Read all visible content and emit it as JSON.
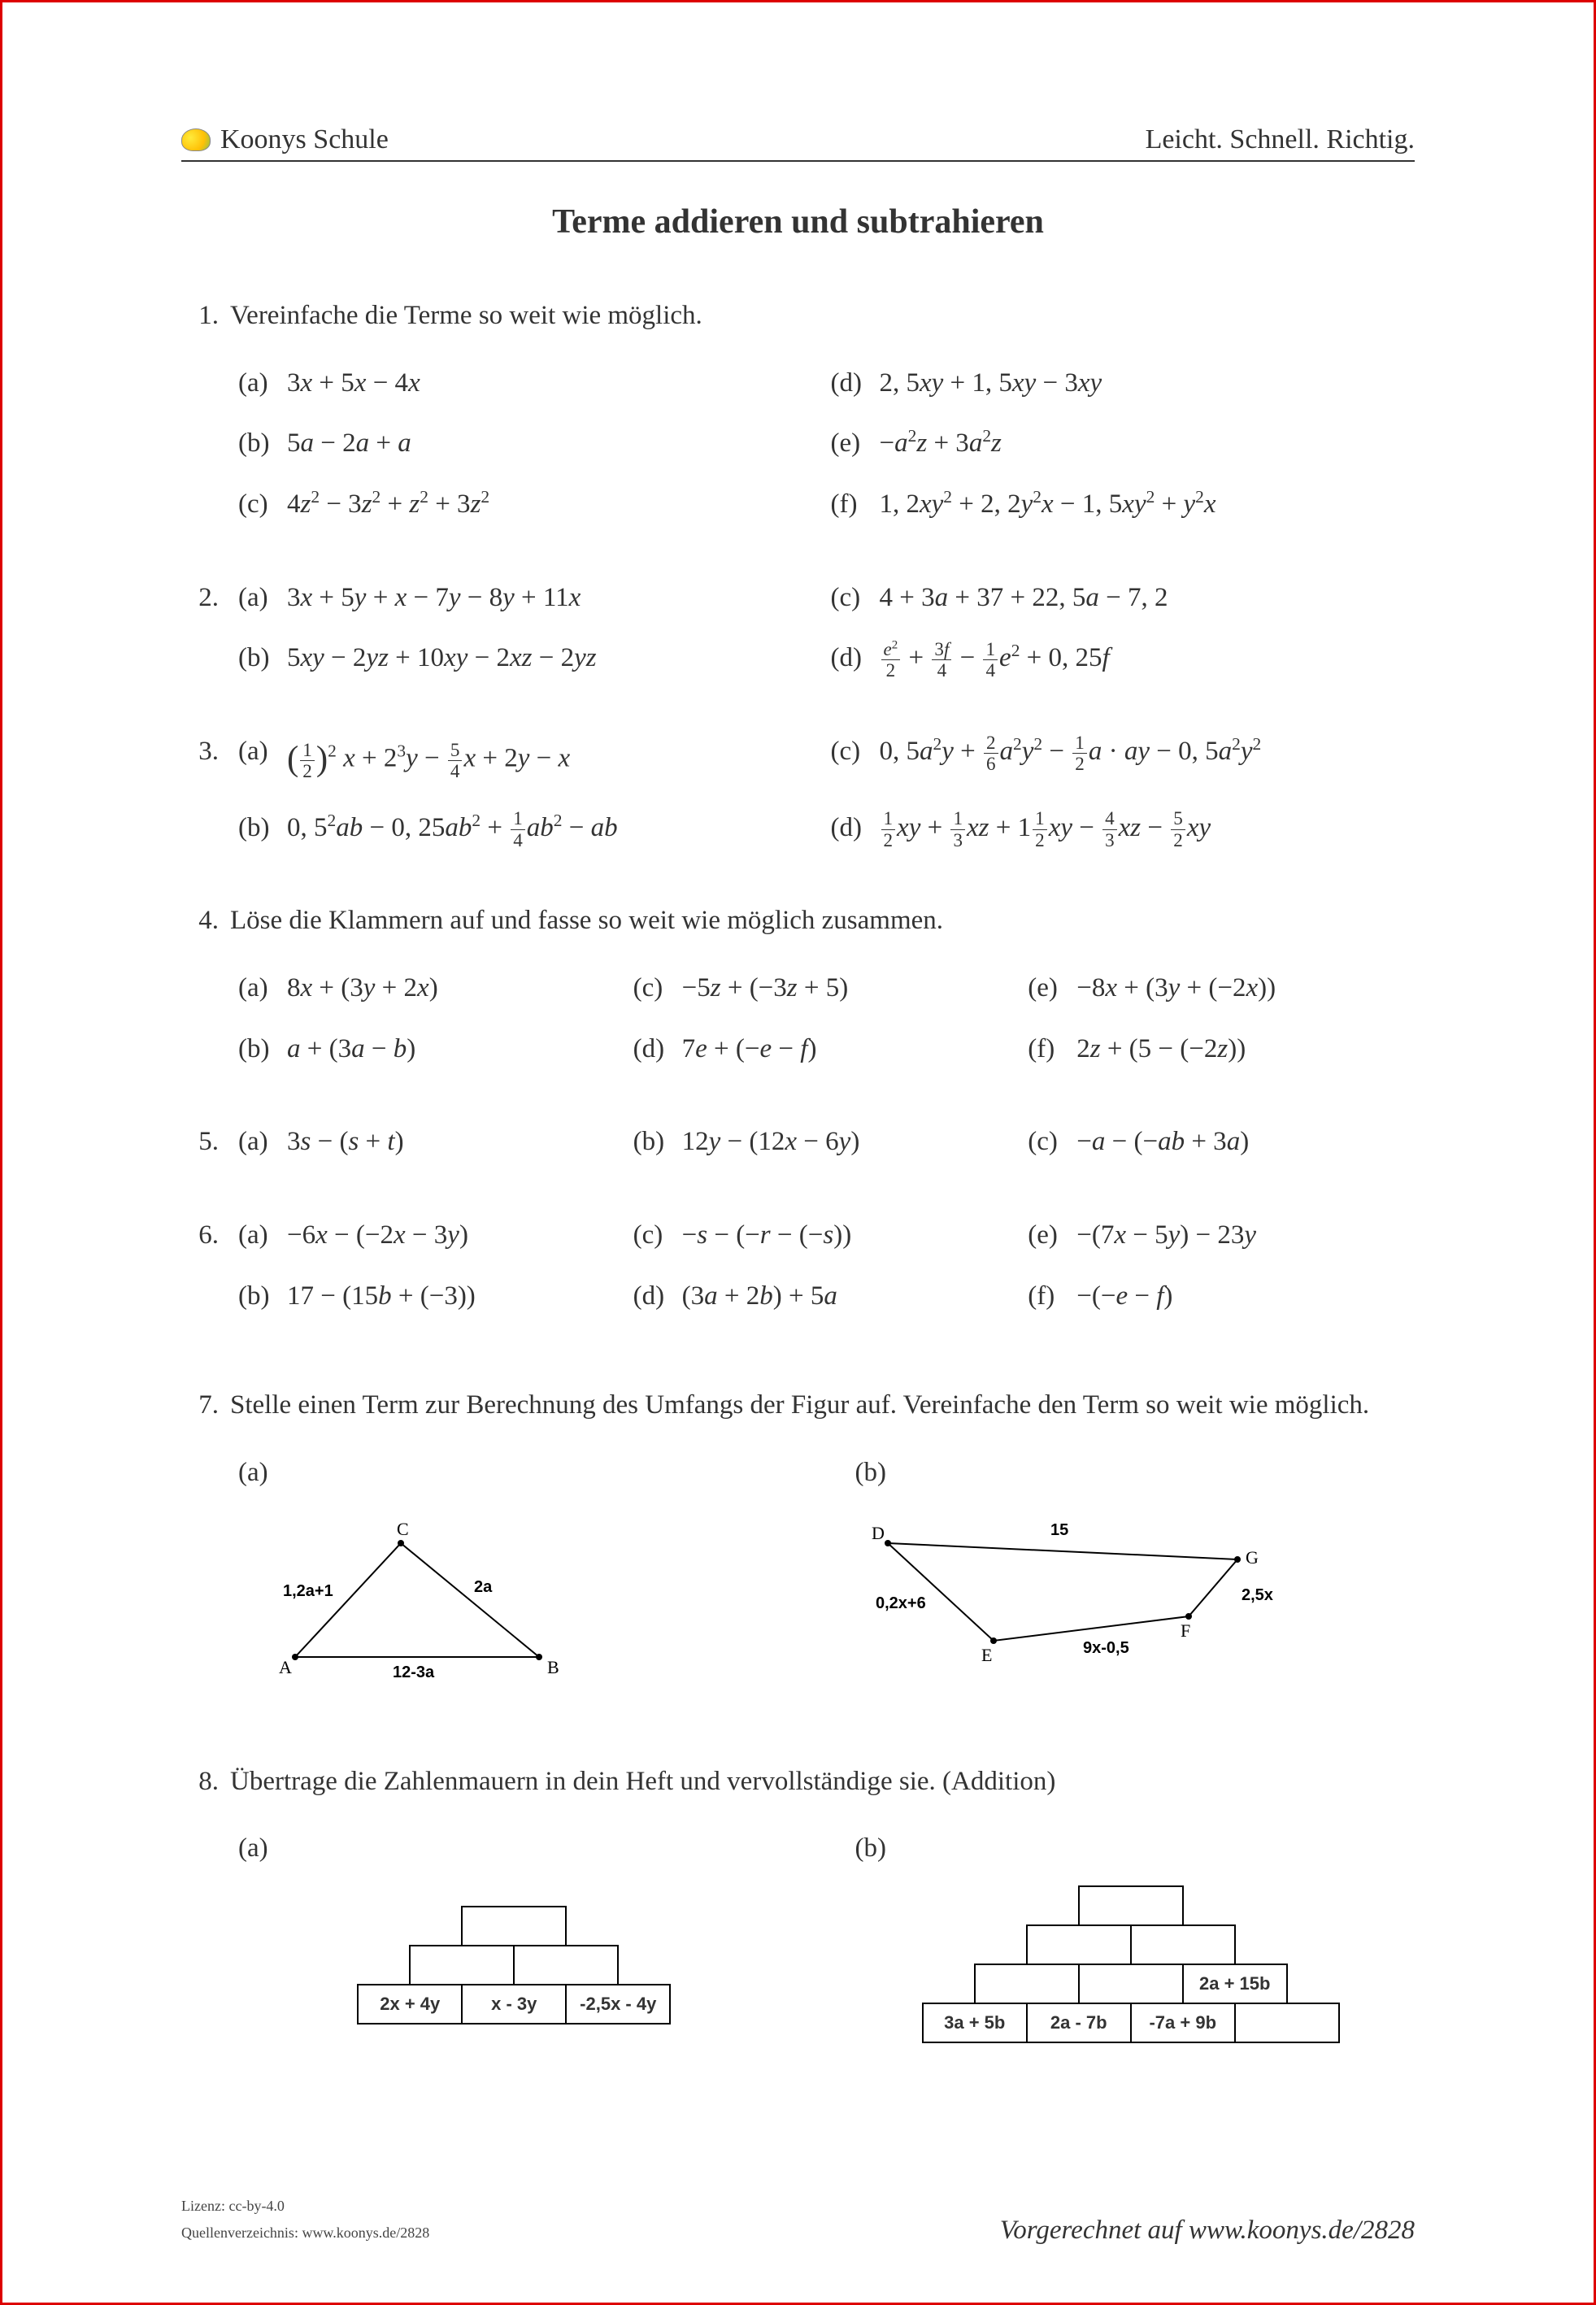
{
  "header": {
    "brand": "Koonys Schule",
    "tagline": "Leicht. Schnell. Richtig."
  },
  "title": "Terme addieren und subtrahieren",
  "problems": [
    {
      "num": "1.",
      "text": "Vereinfache die Terme so weit wie möglich.",
      "layout": "col2",
      "items": [
        {
          "l": "(a)",
          "e": "3<i>x</i> + 5<i>x</i> − 4<i>x</i>"
        },
        {
          "l": "(d)",
          "e": "2, 5<i>xy</i> + 1, 5<i>xy</i> − 3<i>xy</i>"
        },
        {
          "l": "(b)",
          "e": "5<i>a</i> − 2<i>a</i> + <i>a</i>"
        },
        {
          "l": "(e)",
          "e": "−<i>a</i><sup>2</sup><i>z</i> + 3<i>a</i><sup>2</sup><i>z</i>"
        },
        {
          "l": "(c)",
          "e": "4<i>z</i><sup>2</sup> − 3<i>z</i><sup>2</sup> + <i>z</i><sup>2</sup> + 3<i>z</i><sup>2</sup>"
        },
        {
          "l": "(f)",
          "e": "1, 2<i>xy</i><sup>2</sup> + 2, 2<i>y</i><sup>2</sup><i>x</i> − 1, 5<i>xy</i><sup>2</sup> + <i>y</i><sup>2</sup><i>x</i>"
        }
      ]
    },
    {
      "num": "2.",
      "layout": "col2",
      "items": [
        {
          "l": "(a)",
          "e": "3<i>x</i> + 5<i>y</i> + <i>x</i> − 7<i>y</i> − 8<i>y</i> + 11<i>x</i>"
        },
        {
          "l": "(c)",
          "e": "4 + 3<i>a</i> + 37 + 22, 5<i>a</i> − 7, 2"
        },
        {
          "l": "(b)",
          "e": "5<i>xy</i> − 2<i>yz</i> + 10<i>xy</i> − 2<i>xz</i> − 2<i>yz</i>"
        },
        {
          "l": "(d)",
          "e": "<span class='frac'><span class='num'><i>e</i><sup>2</sup></span><span class='den'>2</span></span> + <span class='frac'><span class='num'>3<i>f</i></span><span class='den'>4</span></span> − <span class='frac'><span class='num'>1</span><span class='den'>4</span></span><i>e</i><sup>2</sup> + 0, 25<i>f</i>"
        }
      ]
    },
    {
      "num": "3.",
      "layout": "col2",
      "items": [
        {
          "l": "(a)",
          "e": "<span class='bigparen'>(</span><span class='frac'><span class='num'>1</span><span class='den'>2</span></span><span class='bigparen'>)</span><sup>2</sup> <i>x</i> + 2<sup>3</sup><i>y</i> − <span class='frac'><span class='num'>5</span><span class='den'>4</span></span><i>x</i> + 2<i>y</i> − <i>x</i>"
        },
        {
          "l": "(c)",
          "e": "0, 5<i>a</i><sup>2</sup><i>y</i> + <span class='frac'><span class='num'>2</span><span class='den'>6</span></span><i>a</i><sup>2</sup><i>y</i><sup>2</sup> − <span class='frac'><span class='num'>1</span><span class='den'>2</span></span><i>a</i> · <i>ay</i> − 0, 5<i>a</i><sup>2</sup><i>y</i><sup>2</sup>"
        },
        {
          "l": "(b)",
          "e": "0, 5<sup>2</sup><i>ab</i> − 0, 25<i>ab</i><sup>2</sup> + <span class='frac'><span class='num'>1</span><span class='den'>4</span></span><i>ab</i><sup>2</sup> − <i>ab</i>"
        },
        {
          "l": "(d)",
          "e": "<span class='frac'><span class='num'>1</span><span class='den'>2</span></span><i>xy</i> + <span class='frac'><span class='num'>1</span><span class='den'>3</span></span><i>xz</i> + 1<span class='frac'><span class='num'>1</span><span class='den'>2</span></span><i>xy</i> − <span class='frac'><span class='num'>4</span><span class='den'>3</span></span><i>xz</i> − <span class='frac'><span class='num'>5</span><span class='den'>2</span></span><i>xy</i>"
        }
      ]
    },
    {
      "num": "4.",
      "text": "Löse die Klammern auf und fasse so weit wie möglich zusammen.",
      "layout": "col3",
      "items": [
        {
          "l": "(a)",
          "e": "8<i>x</i> + (3<i>y</i> + 2<i>x</i>)"
        },
        {
          "l": "(c)",
          "e": "−5<i>z</i> + (−3<i>z</i> + 5)"
        },
        {
          "l": "(e)",
          "e": "−8<i>x</i> + (3<i>y</i> + (−2<i>x</i>))"
        },
        {
          "l": "(b)",
          "e": "<i>a</i> + (3<i>a</i> − <i>b</i>)"
        },
        {
          "l": "(d)",
          "e": "7<i>e</i> + (−<i>e</i> − <i>f</i>)"
        },
        {
          "l": "(f)",
          "e": "2<i>z</i> + (5 − (−2<i>z</i>))"
        }
      ]
    },
    {
      "num": "5.",
      "layout": "col3",
      "items": [
        {
          "l": "(a)",
          "e": "3<i>s</i> − (<i>s</i> + <i>t</i>)"
        },
        {
          "l": "(b)",
          "e": "12<i>y</i> − (12<i>x</i> − 6<i>y</i>)"
        },
        {
          "l": "(c)",
          "e": "−<i>a</i> − (−<i>ab</i> + 3<i>a</i>)"
        }
      ]
    },
    {
      "num": "6.",
      "layout": "col3",
      "items": [
        {
          "l": "(a)",
          "e": "−6<i>x</i> − (−2<i>x</i> − 3<i>y</i>)"
        },
        {
          "l": "(c)",
          "e": "−<i>s</i> − (−<i>r</i> − (−<i>s</i>))"
        },
        {
          "l": "(e)",
          "e": "−(7<i>x</i> − 5<i>y</i>) − 23<i>y</i>"
        },
        {
          "l": "(b)",
          "e": "17 − (15<i>b</i> + (−3))"
        },
        {
          "l": "(d)",
          "e": "(3<i>a</i> + 2<i>b</i>) + 5<i>a</i>"
        },
        {
          "l": "(f)",
          "e": "−(−<i>e</i> − <i>f</i>)"
        }
      ]
    }
  ],
  "problem7": {
    "num": "7.",
    "text": "Stelle einen Term zur Berechnung des Umfangs der Figur auf. Vereinfache den Term so weit wie möglich.",
    "figA": {
      "label": "(a)",
      "vertices": {
        "A": "A",
        "B": "B",
        "C": "C"
      },
      "edges": {
        "AB": "12-3a",
        "BC": "2a",
        "CA": "1,2a+1"
      }
    },
    "figB": {
      "label": "(b)",
      "vertices": {
        "D": "D",
        "E": "E",
        "F": "F",
        "G": "G"
      },
      "edges": {
        "DG": "15",
        "GF": "2,5x",
        "FE": "9x-0,5",
        "ED": "0,2x+6"
      }
    }
  },
  "problem8": {
    "num": "8.",
    "text": "Übertrage die Zahlenmauern in dein Heft und vervollständige sie. (Addition)",
    "wallA": {
      "label": "(a)",
      "brickW": 130,
      "rows": [
        [
          ""
        ],
        [
          "",
          ""
        ],
        [
          "2x + 4y",
          "x - 3y",
          "-2,5x - 4y"
        ]
      ]
    },
    "wallB": {
      "label": "(b)",
      "brickW": 130,
      "rows": [
        [
          ""
        ],
        [
          "",
          ""
        ],
        [
          "",
          "",
          "2a + 15b"
        ],
        [
          "3a + 5b",
          "2a - 7b",
          "-7a + 9b",
          ""
        ]
      ]
    }
  },
  "footer": {
    "license": "Lizenz:  cc-by-4.0",
    "source": "Quellenverzeichnis:  www.koonys.de/2828",
    "solved": "Vorgerechnet auf www.koonys.de/2828"
  }
}
